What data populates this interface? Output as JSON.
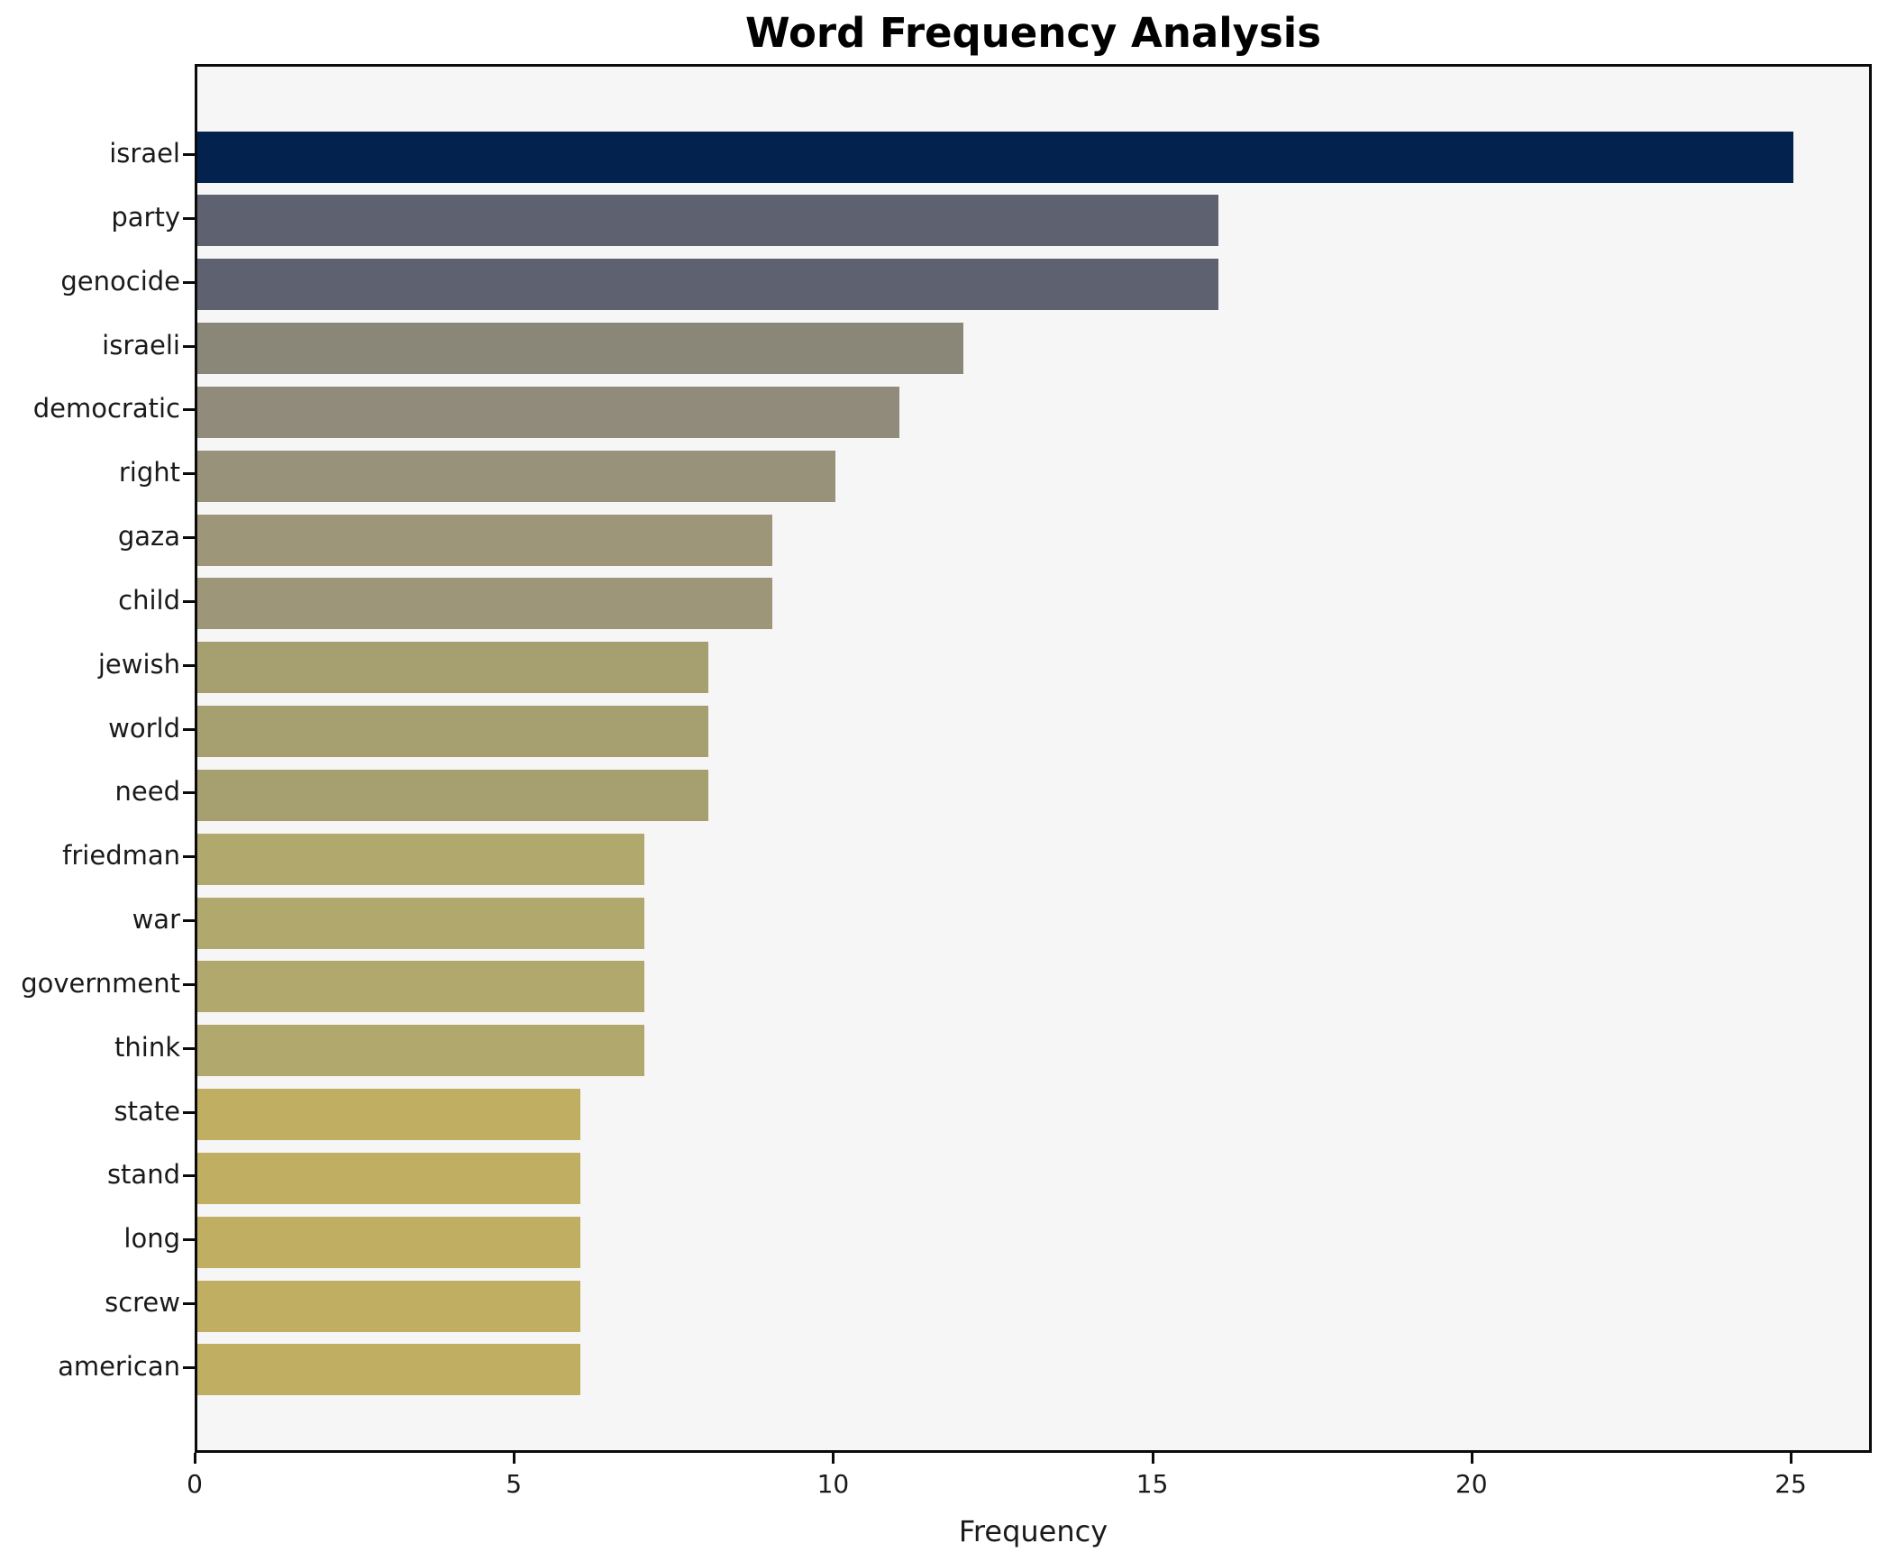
{
  "title": "Word Frequency Analysis",
  "xlabel": "Frequency",
  "chart_data": {
    "type": "bar",
    "orientation": "horizontal",
    "title": "Word Frequency Analysis",
    "xlabel": "Frequency",
    "ylabel": "",
    "categories": [
      "israel",
      "party",
      "genocide",
      "israeli",
      "democratic",
      "right",
      "gaza",
      "child",
      "jewish",
      "world",
      "need",
      "friedman",
      "war",
      "government",
      "think",
      "state",
      "stand",
      "long",
      "screw",
      "american"
    ],
    "values": [
      25,
      16,
      16,
      12,
      11,
      10,
      9,
      9,
      8,
      8,
      8,
      7,
      7,
      7,
      7,
      6,
      6,
      6,
      6,
      6
    ],
    "bar_colors": [
      "#03224e",
      "#5d6170",
      "#5d6170",
      "#8a8779",
      "#908b7b",
      "#99927b",
      "#9e9679",
      "#9e9679",
      "#a6a071",
      "#a6a071",
      "#a6a071",
      "#b1a86e",
      "#b1a86e",
      "#b1a86e",
      "#b1a86e",
      "#c0ae63",
      "#c0ae63",
      "#c0ae63",
      "#c0ae63",
      "#c0ae63"
    ],
    "x_ticks": [
      0,
      5,
      10,
      15,
      20,
      25
    ],
    "xlim": [
      0,
      26.27
    ],
    "grid": false,
    "legend": false,
    "plot_background": "#f6f6f7",
    "spine_color": "#0b0b0b"
  }
}
